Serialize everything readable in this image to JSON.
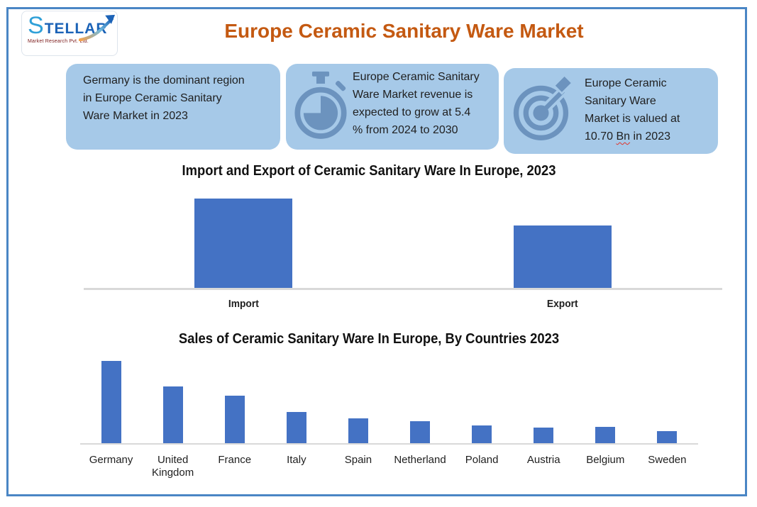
{
  "header": {
    "logo": {
      "brand": "STELLAR",
      "tagline": "Market Research Pvt. Ltd.",
      "arrow_icon": "up-right-trend-arrow"
    },
    "title": "Europe Ceramic Sanitary Ware Market"
  },
  "info_boxes": {
    "box1": {
      "lines": [
        "Germany is the dominant region",
        "in Europe Ceramic Sanitary",
        "Ware Market in 2023"
      ]
    },
    "box2": {
      "icon": "stopwatch-icon",
      "lines": [
        "Europe Ceramic Sanitary",
        "Ware Market revenue is",
        "expected to grow at 5.4",
        "% from 2024 to 2030"
      ]
    },
    "box3": {
      "icon": "target-dart-icon",
      "lines": [
        "Europe Ceramic",
        "Sanitary Ware",
        "Market is valued at",
        "10.70 Bn in 2023"
      ],
      "spellcheck_underlined_word": "Bn"
    }
  },
  "chart_data": [
    {
      "type": "bar",
      "title": "Import and Export of Ceramic Sanitary Ware In Europe, 2023",
      "categories": [
        "Import",
        "Export"
      ],
      "values": [
        100,
        70
      ],
      "value_note": "relative bar heights; no numeric axis, gridlines or data labels shown",
      "bar_color": "#4472C4",
      "axis_line_color": "#D9D9D9",
      "grid": false,
      "legend": false
    },
    {
      "type": "bar",
      "title": "Sales of Ceramic Sanitary Ware In Europe, By Countries 2023",
      "categories": [
        "Germany",
        "United Kingdom",
        "France",
        "Italy",
        "Spain",
        "Netherland",
        "Poland",
        "Austria",
        "Belgium",
        "Sweden"
      ],
      "values": [
        100,
        69,
        58,
        38,
        30,
        27,
        22,
        19,
        20,
        15
      ],
      "value_note": "relative bar heights; no numeric axis, gridlines or data labels shown",
      "bar_color": "#4472C4",
      "axis_line_color": "#D9D9D9",
      "grid": false,
      "legend": false
    }
  ],
  "colors": {
    "page_border_blue": "#4A86C5",
    "title_orange": "#C45911",
    "info_box_bg": "#A6C9E8",
    "icon_blue": "#6C93BE",
    "bar_blue": "#4472C4",
    "axis_gray": "#D9D9D9",
    "spellcheck_red": "#E0342B",
    "logo_blue": "#1C63B7",
    "logo_tagline_maroon": "#7B1A1A"
  }
}
